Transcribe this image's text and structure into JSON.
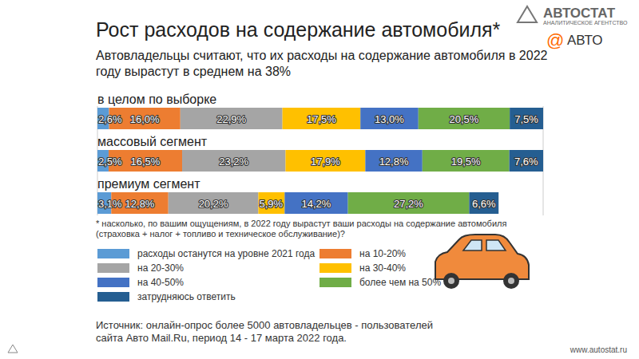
{
  "chart_data": {
    "type": "bar",
    "orientation": "horizontal",
    "stacked": true,
    "data_labels": true,
    "tick_labels": false,
    "legend": "bottom",
    "title": "Рост расходов на содержание автомобиля*",
    "subtitle": "Автовладельцы считают, что их расходы на содержание автомобиля в 2022 году вырастут в среднем на 38%",
    "categories": [
      "в целом по выборке",
      "массовый сегмент",
      "премиум сегмент"
    ],
    "xlim": [
      0,
      100
    ],
    "series": [
      {
        "name": "расходы останутся на уровне 2021 года",
        "color": "#5b9bd5",
        "values": [
          2.6,
          2.5,
          3.1
        ],
        "value_labels": [
          "2,6%",
          "2,5%",
          "3,1%"
        ]
      },
      {
        "name": "на 10-20%",
        "color": "#ed7d31",
        "values": [
          16.0,
          16.5,
          12.8
        ],
        "value_labels": [
          "16,0%",
          "16,5%",
          "12,8%"
        ]
      },
      {
        "name": "на 20-30%",
        "color": "#a5a5a5",
        "values": [
          22.9,
          23.2,
          20.2
        ],
        "value_labels": [
          "22,9%",
          "23,2%",
          "20,2%"
        ]
      },
      {
        "name": "на 30-40%",
        "color": "#ffc000",
        "values": [
          17.5,
          17.9,
          5.9
        ],
        "value_labels": [
          "17,5%",
          "17,9%",
          "5,9%"
        ]
      },
      {
        "name": "на 40-50%",
        "color": "#4472c4",
        "values": [
          13.0,
          12.8,
          14.2
        ],
        "value_labels": [
          "13,0%",
          "12,8%",
          "14,2%"
        ]
      },
      {
        "name": "более чем на 50%",
        "color": "#70ad47",
        "values": [
          20.5,
          19.5,
          27.2
        ],
        "value_labels": [
          "20,5%",
          "19,5%",
          "27,2%"
        ]
      },
      {
        "name": "затрудняюсь ответить",
        "color": "#255e91",
        "values": [
          7.5,
          7.6,
          6.6
        ],
        "value_labels": [
          "7,5%",
          "7,6%",
          "6,6%"
        ]
      }
    ],
    "annotations": [
      "* насколько, по вашим ощущениям, в 2022 году вырастут ваши расходы на содержание автомобиля (страховка + налог + топливо и техническое обслуживание)?",
      "Источник: онлайн-опрос более 5000 автовладельцев - пользователей сайта Авто Mail.Ru, период 14 - 17 марта 2022 года.",
      "АВТОСТАТ",
      "АНАЛИТИЧЕСКОЕ АГЕНТСТВО",
      "@",
      "АВТО",
      "www.autostat.ru"
    ]
  }
}
